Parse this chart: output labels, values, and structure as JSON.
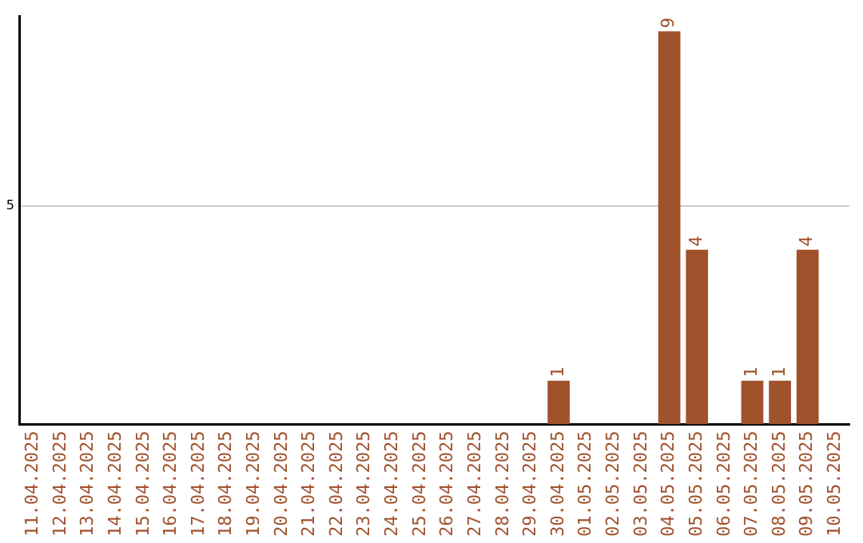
{
  "chart_data": {
    "type": "bar",
    "categories": [
      "11.04.2025",
      "12.04.2025",
      "13.04.2025",
      "14.04.2025",
      "15.04.2025",
      "16.04.2025",
      "17.04.2025",
      "18.04.2025",
      "19.04.2025",
      "20.04.2025",
      "21.04.2025",
      "22.04.2025",
      "23.04.2025",
      "24.04.2025",
      "25.04.2025",
      "26.04.2025",
      "27.04.2025",
      "28.04.2025",
      "29.04.2025",
      "30.04.2025",
      "01.05.2025",
      "02.05.2025",
      "03.05.2025",
      "04.05.2025",
      "05.05.2025",
      "06.05.2025",
      "07.05.2025",
      "08.05.2025",
      "09.05.2025",
      "10.05.2025"
    ],
    "values": [
      null,
      null,
      null,
      null,
      null,
      null,
      null,
      null,
      null,
      null,
      null,
      null,
      null,
      null,
      null,
      null,
      null,
      null,
      null,
      1,
      null,
      null,
      null,
      9,
      4,
      null,
      1,
      1,
      4,
      null
    ],
    "data_labels": true,
    "color": "#a0522d",
    "ylim": [
      0,
      9.35
    ],
    "yticks": [
      5
    ],
    "grid": "y",
    "legend": false
  }
}
